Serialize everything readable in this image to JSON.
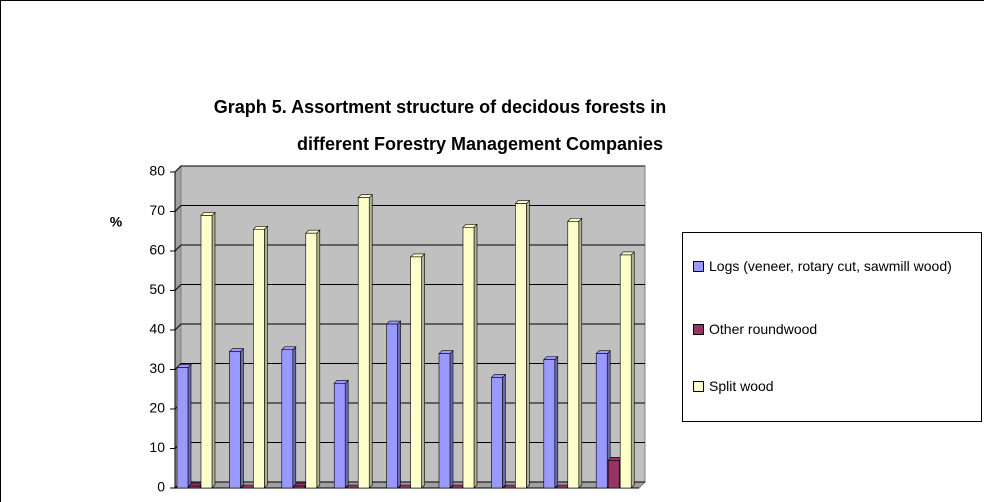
{
  "chart_data": {
    "type": "bar",
    "title": "Graph  5. Assortment structure of decidous forests in different Forestry Management Companies",
    "ylabel": "%",
    "categories": [
      null,
      null,
      null,
      null,
      null,
      null,
      null,
      null,
      null
    ],
    "series": [
      {
        "name": "Logs (veneer, rotary cut, sawmill wood)",
        "color": "#9999ff",
        "values": [
          30.5,
          34.5,
          35,
          26.5,
          41.5,
          34,
          28,
          32.5,
          34
        ]
      },
      {
        "name": "Other roundwood",
        "color": "#993366",
        "values": [
          0.5,
          0,
          0.5,
          0,
          0,
          0,
          0,
          0,
          7
        ]
      },
      {
        "name": "Split wood",
        "color": "#ffffcc",
        "values": [
          69,
          65.5,
          64.5,
          73.5,
          58.5,
          66,
          72,
          67.5,
          59
        ]
      }
    ],
    "ylim": [
      0,
      80
    ],
    "yticks": [
      0,
      10,
      20,
      30,
      40,
      50,
      60,
      70,
      80
    ],
    "grid": true
  }
}
